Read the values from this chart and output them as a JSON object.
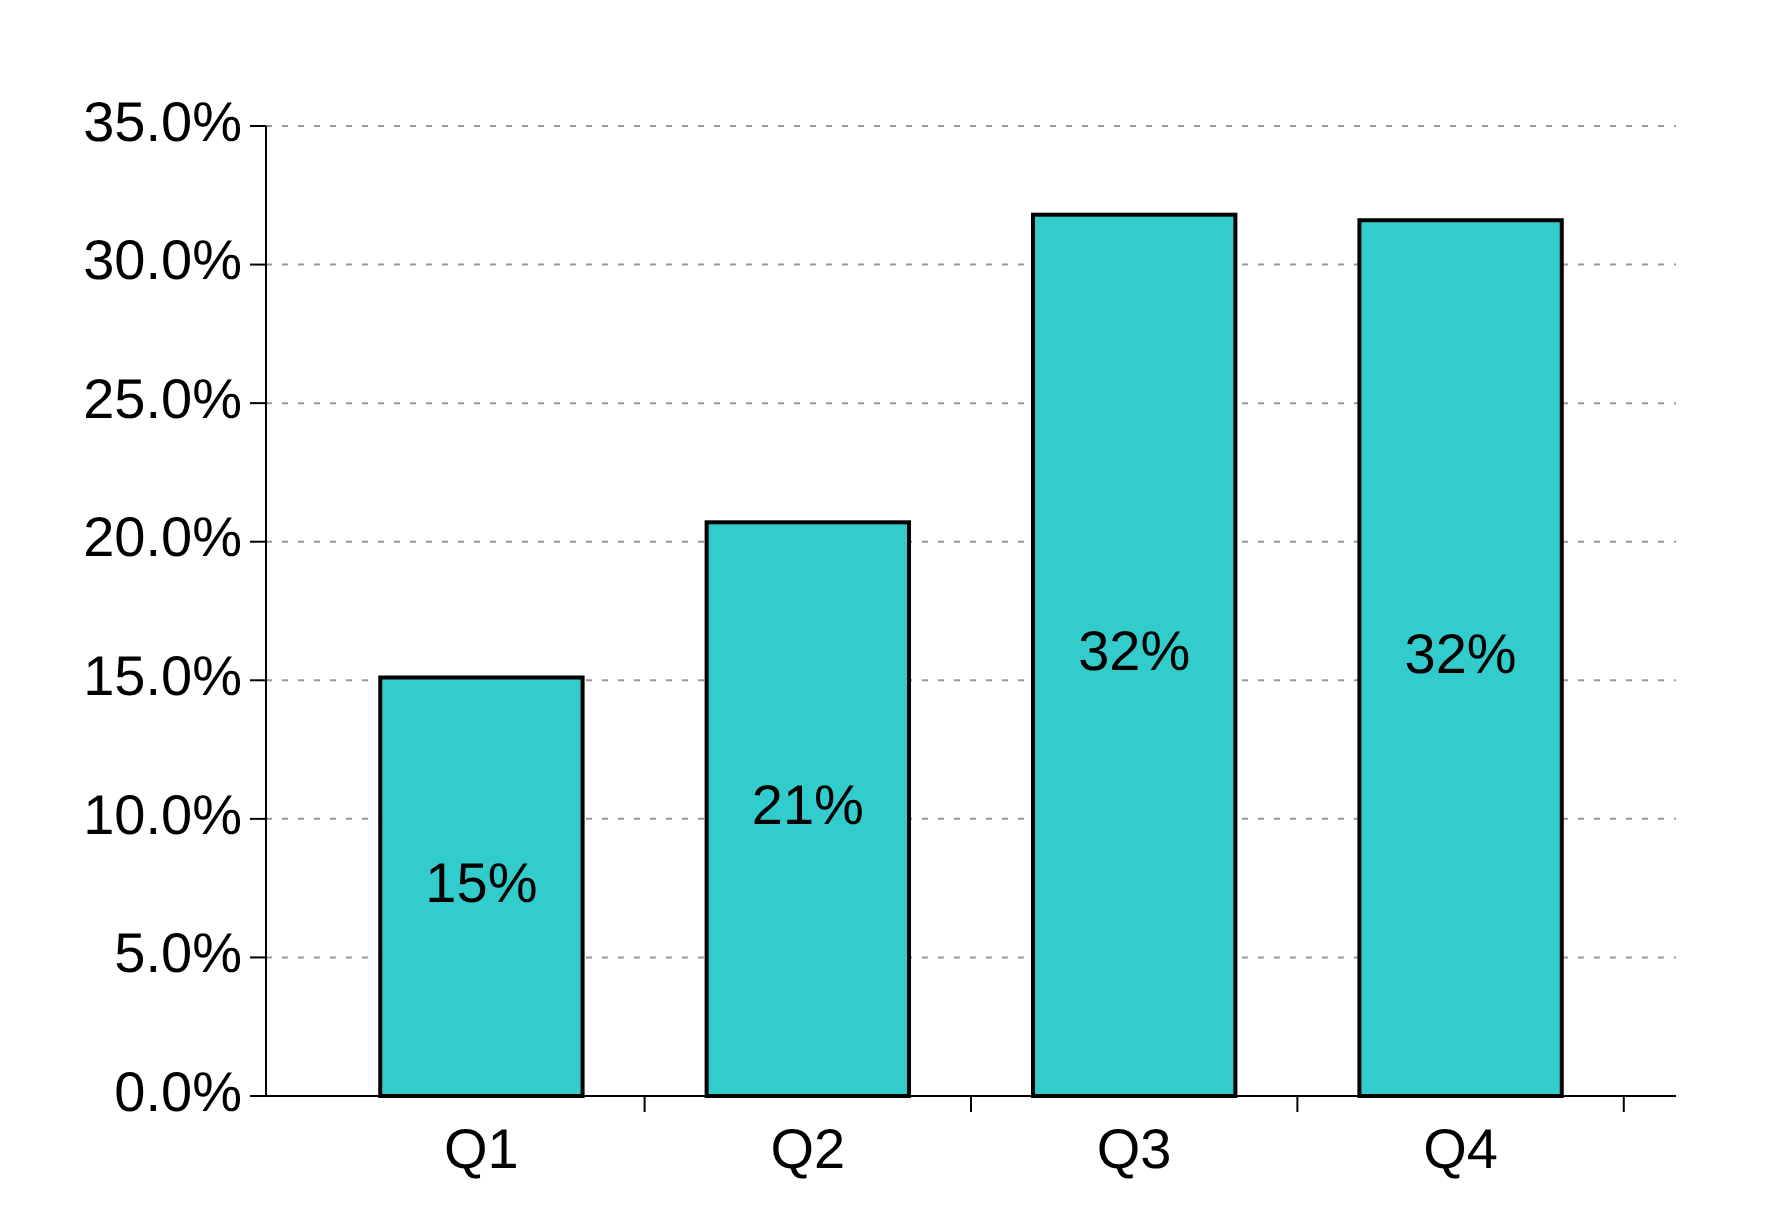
{
  "chart_data": {
    "type": "bar",
    "categories": [
      "Q1",
      "Q2",
      "Q3",
      "Q4"
    ],
    "values": [
      15.1,
      20.7,
      31.8,
      31.6
    ],
    "value_labels": [
      "15%",
      "21%",
      "32%",
      "32%"
    ],
    "color": "#33cccc",
    "ylim": [
      0,
      35
    ],
    "yticks": [
      {
        "value": 0,
        "label": "0.0%"
      },
      {
        "value": 5,
        "label": "5.0%"
      },
      {
        "value": 10,
        "label": "10.0%"
      },
      {
        "value": 15,
        "label": "15.0%"
      },
      {
        "value": 20,
        "label": "20.0%"
      },
      {
        "value": 25,
        "label": "25.0%"
      },
      {
        "value": 30,
        "label": "30.0%"
      },
      {
        "value": 35,
        "label": "35.0%"
      }
    ],
    "grid": "y"
  }
}
